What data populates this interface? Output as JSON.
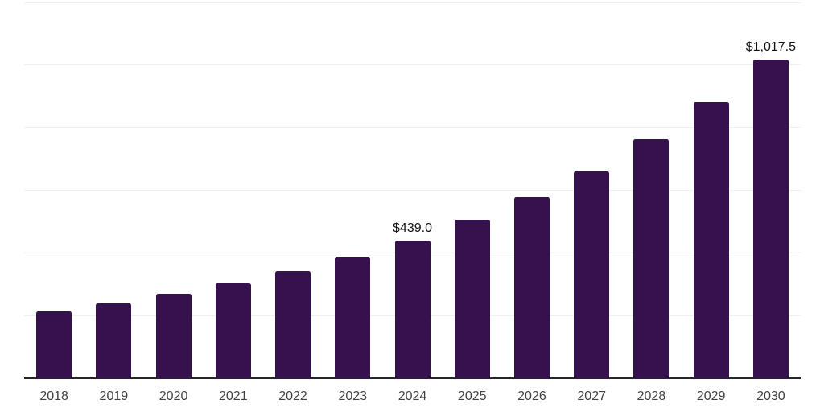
{
  "chart_data": {
    "type": "bar",
    "title": "",
    "xlabel": "",
    "ylabel": "",
    "categories": [
      "2018",
      "2019",
      "2020",
      "2021",
      "2022",
      "2023",
      "2024",
      "2025",
      "2026",
      "2027",
      "2028",
      "2029",
      "2030"
    ],
    "values": [
      213,
      239,
      268.5,
      303,
      341,
      388,
      439,
      505,
      577,
      661,
      762,
      880,
      1017.5
    ],
    "labeled_points": [
      {
        "category": "2024",
        "label": "$439.0"
      },
      {
        "category": "2030",
        "label": "$1,017.5"
      }
    ],
    "ylim": [
      0,
      1200
    ],
    "gridline_step": 200,
    "grid": true,
    "legend": false,
    "y_axis_labels_visible": false,
    "colors": {
      "bar": "#35114E",
      "axis_line": "#262626",
      "gridline": "#F0F0F0",
      "tick_label": "#404040",
      "data_label": "#111111",
      "background": "#FFFFFF"
    }
  }
}
